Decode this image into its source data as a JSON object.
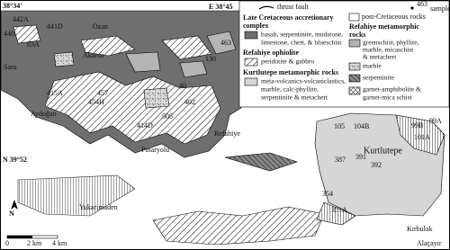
{
  "map": {
    "coordinates": [
      "38°34'",
      "E 38°45",
      "N 39°52"
    ],
    "places": [
      "Ozan",
      "Akarsu",
      "Saru",
      "Aydoğan",
      "Pınaryolu",
      "Refahiye",
      "Yukarımaden",
      "Kurtlutepe",
      "Kırbulak",
      "Alaçayır"
    ],
    "samples": [
      "440",
      "442A",
      "83A",
      "441D",
      "415A",
      "457",
      "454H",
      "40",
      "130",
      "463",
      "505",
      "414D",
      "402",
      "105",
      "104B",
      "99B",
      "99A",
      "101A",
      "387",
      "391",
      "392",
      "354",
      "351A"
    ],
    "legend": {
      "thrust_fault": "thrust fault",
      "sample_number": "463",
      "sample": "sample",
      "post_cretaceous": "post-Cretaceous rocks",
      "accretionary_title": [
        "Late Cretaceous accretionary",
        "complex"
      ],
      "accretionary_desc": [
        "basalt, serpentinite, mudstone,",
        "limestone, chert, & blueschist"
      ],
      "ophiolite_title": "Refahiye ophiolite",
      "ophiolite_desc": "peridotite & gabbro",
      "kurtlutepe_title": "Kurtlutepe metamorphic rocks",
      "kurtlutepe_desc": [
        "meta-volcanics-volcaniclastics,",
        "marble, calc-phyllite,",
        "serpentinite & metachert"
      ],
      "refahiye_title": [
        "Refahiye metamorphic",
        "rocks"
      ],
      "greenschist": [
        "greenschist, phyllite,",
        "marble, micaschist",
        "& metachert"
      ],
      "marble": "marble",
      "serpentinite": "serpentinite",
      "garnet": [
        "garnet-amphibolite &",
        "garnet-mica schist"
      ]
    },
    "scale": [
      "0",
      "2 km",
      "4 km"
    ],
    "north": "N"
  }
}
